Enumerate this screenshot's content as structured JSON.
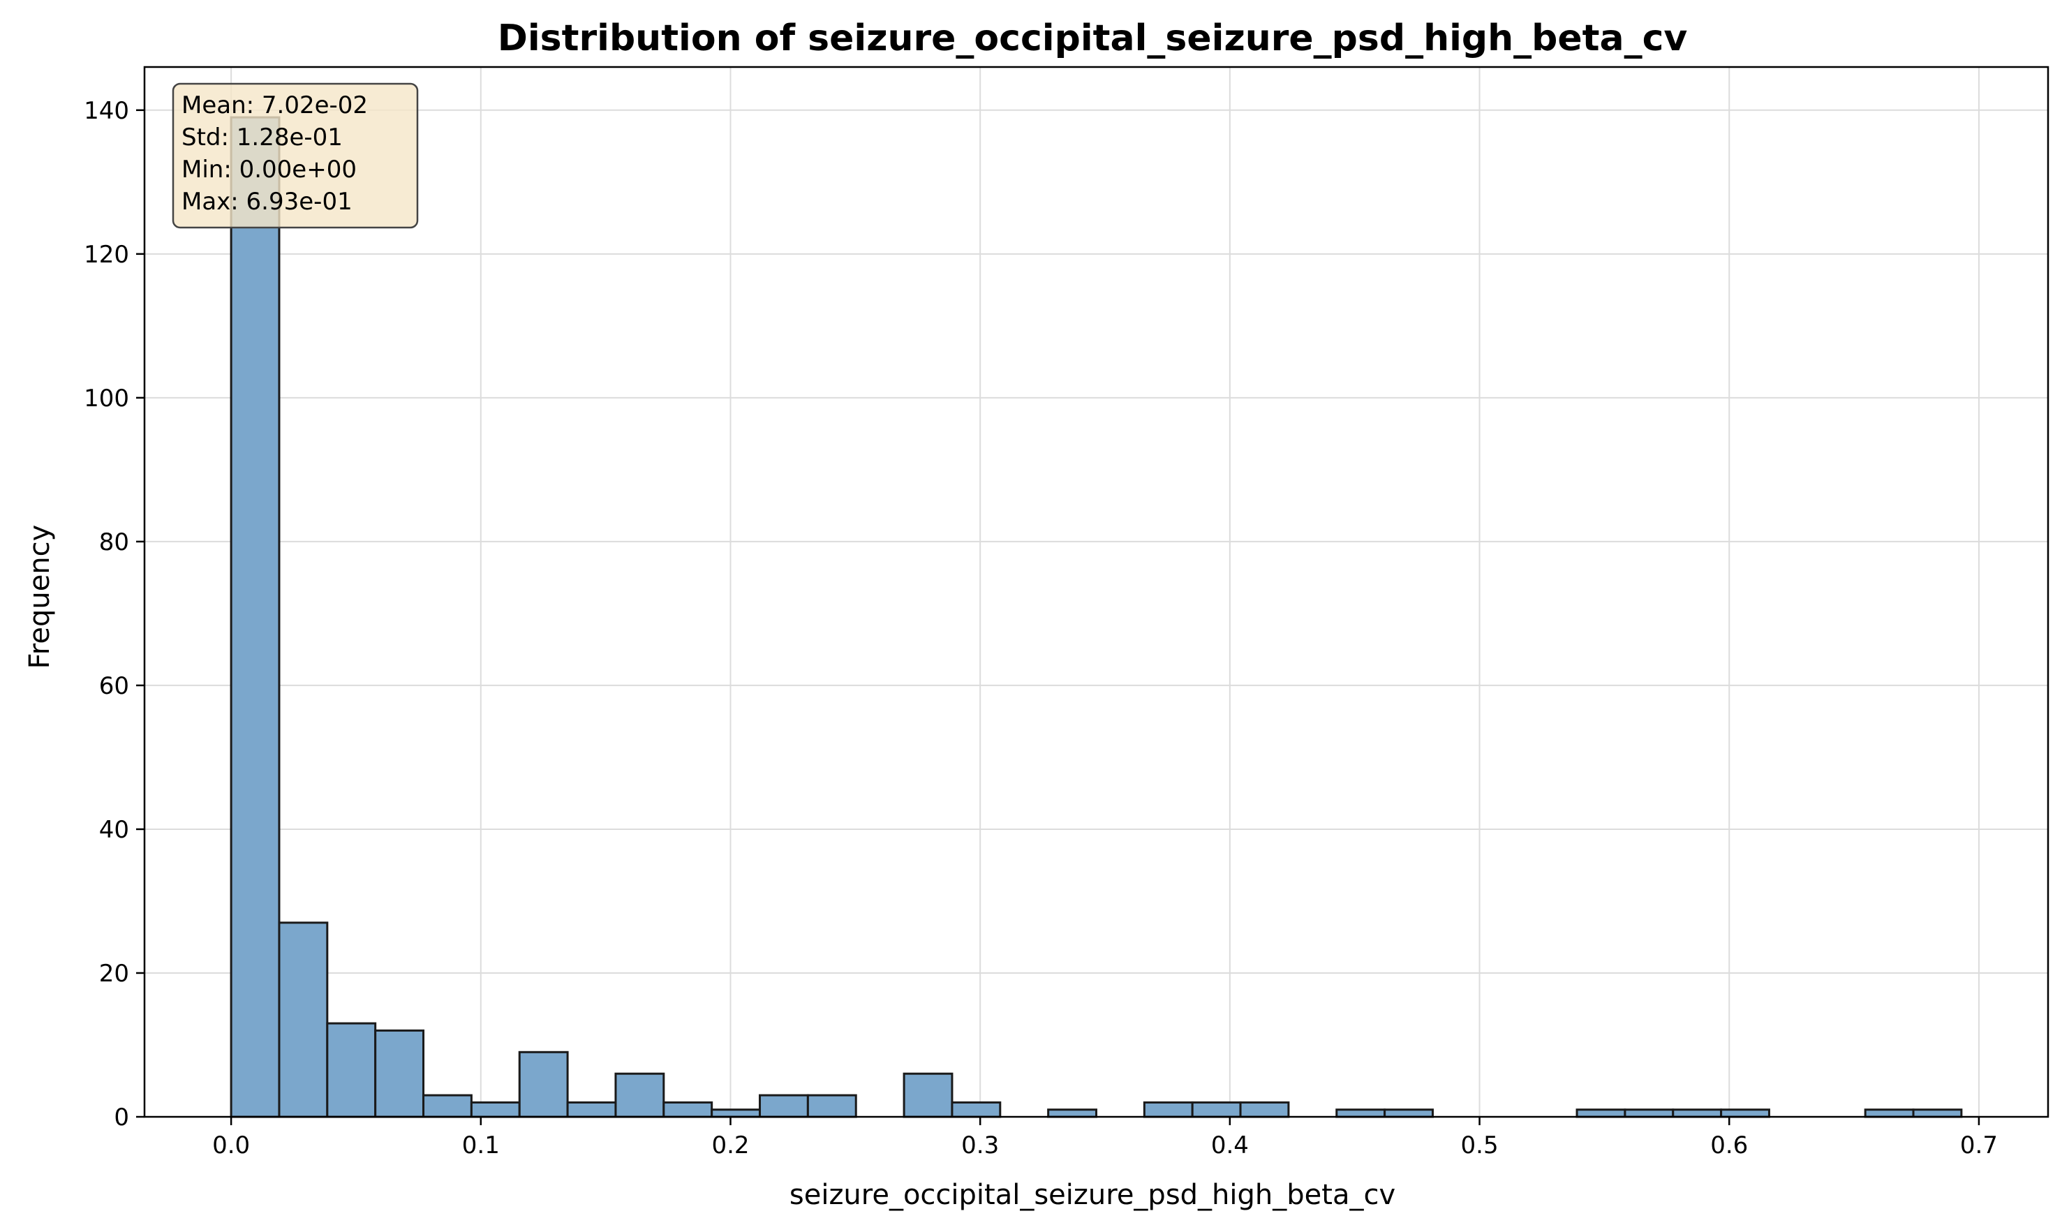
{
  "chart_data": {
    "type": "bar",
    "title": "Distribution of seizure_occipital_seizure_psd_high_beta_cv",
    "xlabel": "seizure_occipital_seizure_psd_high_beta_cv",
    "ylabel": "Frequency",
    "xlim": [
      -0.0347,
      0.7277
    ],
    "ylim": [
      0,
      146
    ],
    "xticks": [
      0.0,
      0.1,
      0.2,
      0.3,
      0.4,
      0.5,
      0.6,
      0.7
    ],
    "xtick_labels": [
      "0.0",
      "0.1",
      "0.2",
      "0.3",
      "0.4",
      "0.5",
      "0.6",
      "0.7"
    ],
    "yticks": [
      0,
      20,
      40,
      60,
      80,
      100,
      120,
      140
    ],
    "ytick_labels": [
      "0",
      "20",
      "40",
      "60",
      "80",
      "100",
      "120",
      "140"
    ],
    "bin_start": 0.0,
    "bin_width": 0.01925,
    "bin_counts": [
      139,
      27,
      13,
      12,
      3,
      2,
      9,
      2,
      6,
      2,
      1,
      3,
      3,
      0,
      6,
      2,
      0,
      1,
      0,
      2,
      2,
      2,
      0,
      1,
      1,
      0,
      0,
      0,
      1,
      1,
      1,
      1,
      0,
      0,
      1,
      1
    ],
    "grid": true,
    "bar_color": "#7BA7CC",
    "edge_color": "#1a1a1a",
    "stats_box": {
      "lines": [
        "Mean: 7.02e-02",
        "Std: 1.28e-01",
        "Min: 0.00e+00",
        "Max: 6.93e-01"
      ],
      "placement": "top-left",
      "background": "#F5E6C8"
    }
  }
}
